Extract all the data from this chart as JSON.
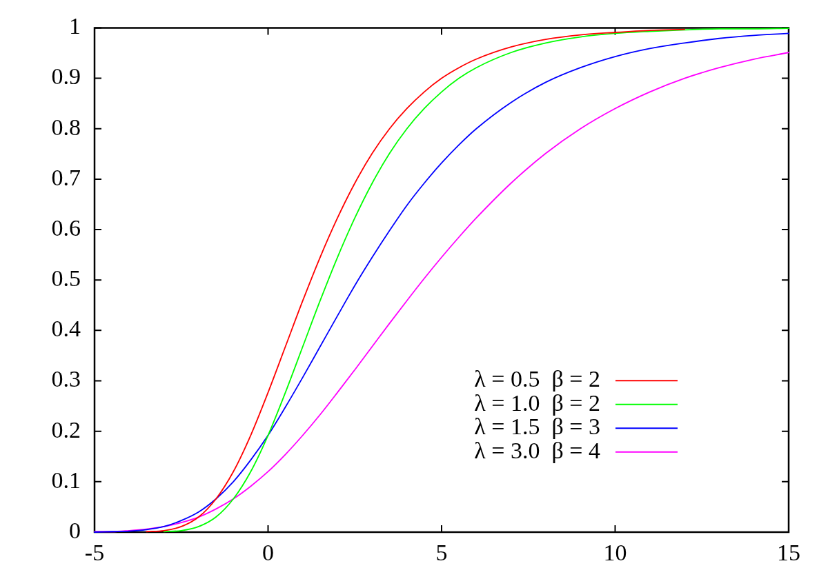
{
  "chart_data": {
    "type": "line",
    "x": [
      -5,
      -4.5,
      -4,
      -3.5,
      -3,
      -2.5,
      -2,
      -1.5,
      -1,
      -0.5,
      0,
      0.5,
      1,
      1.5,
      2,
      2.5,
      3,
      3.5,
      4,
      4.5,
      5,
      5.5,
      6,
      7,
      8,
      9,
      10,
      11,
      12,
      13,
      14,
      15
    ],
    "series": [
      {
        "name": "λ = 0.5  β = 2",
        "color": "#ff0000",
        "values": [
          null,
          null,
          null,
          0.001,
          0.003,
          0.011,
          0.03,
          0.066,
          0.12,
          0.192,
          0.277,
          0.368,
          0.459,
          0.545,
          0.623,
          0.692,
          0.751,
          0.8,
          0.84,
          0.873,
          0.9,
          0.921,
          0.938,
          0.962,
          0.977,
          0.986,
          0.991,
          0.995,
          0.997,
          null,
          null,
          null
        ]
      },
      {
        "name": "λ = 1.0  β = 2",
        "color": "#00ff00",
        "values": [
          null,
          null,
          null,
          null,
          0.001,
          0.003,
          0.011,
          0.03,
          0.066,
          0.12,
          0.192,
          0.277,
          0.368,
          0.459,
          0.545,
          0.623,
          0.692,
          0.751,
          0.8,
          0.84,
          0.873,
          0.9,
          0.921,
          0.951,
          0.97,
          0.982,
          0.989,
          0.993,
          0.996,
          0.998,
          0.998,
          0.999
        ]
      },
      {
        "name": "λ = 1.5  β = 3",
        "color": "#0000ff",
        "values": [
          0.0,
          0.001,
          0.002,
          0.005,
          0.011,
          0.023,
          0.04,
          0.066,
          0.1,
          0.143,
          0.192,
          0.248,
          0.307,
          0.368,
          0.429,
          0.489,
          0.545,
          0.598,
          0.648,
          0.692,
          0.732,
          0.768,
          0.8,
          0.852,
          0.892,
          0.921,
          0.943,
          0.959,
          0.97,
          0.979,
          0.985,
          0.989
        ]
      },
      {
        "name": "λ = 3.0  β = 4",
        "color": "#ff00ff",
        "values": [
          0.001,
          0.001,
          0.003,
          0.006,
          0.011,
          0.019,
          0.03,
          0.046,
          0.066,
          0.091,
          0.12,
          0.154,
          0.192,
          0.233,
          0.277,
          0.322,
          0.368,
          0.414,
          0.459,
          0.503,
          0.545,
          0.585,
          0.623,
          0.692,
          0.751,
          0.8,
          0.84,
          0.873,
          0.9,
          0.921,
          0.938,
          0.951
        ]
      }
    ],
    "xlim": [
      -5,
      15
    ],
    "xticks": [
      -5,
      0,
      5,
      10,
      15
    ],
    "ylim": [
      0,
      1
    ],
    "yticks": [
      0,
      0.1,
      0.2,
      0.3,
      0.4,
      0.5,
      0.6,
      0.7,
      0.8,
      0.9,
      1
    ],
    "grid": false,
    "legend": "bottom right",
    "marker": "none",
    "line_style": "solid"
  }
}
